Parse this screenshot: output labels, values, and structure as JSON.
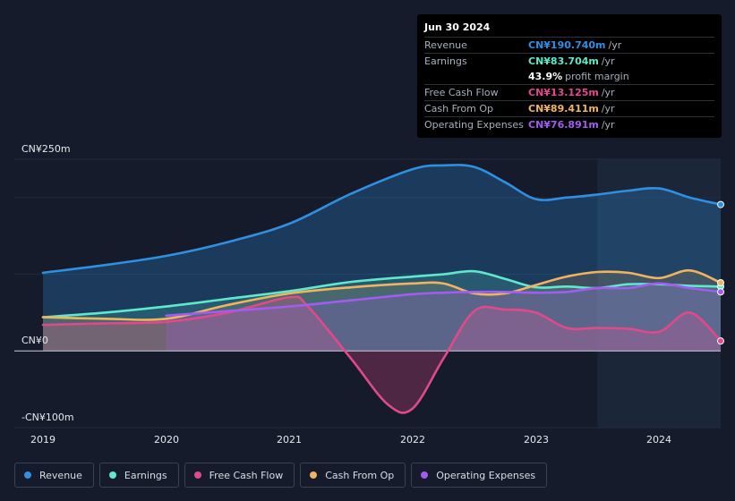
{
  "tooltip": {
    "date": "Jun 30 2024",
    "rows": [
      {
        "label": "Revenue",
        "value": "CN¥190.740m",
        "unit": "/yr",
        "color": "#2f8fe0"
      },
      {
        "label": "Earnings",
        "value": "CN¥83.704m",
        "unit": "/yr",
        "color": "#5ee8cc"
      },
      {
        "label": "",
        "value": "43.9%",
        "unit": "profit margin",
        "color": "#ffffff"
      },
      {
        "label": "Free Cash Flow",
        "value": "CN¥13.125m",
        "unit": "/yr",
        "color": "#e0498a"
      },
      {
        "label": "Cash From Op",
        "value": "CN¥89.411m",
        "unit": "/yr",
        "color": "#f0b461"
      },
      {
        "label": "Operating Expenses",
        "value": "CN¥76.891m",
        "unit": "/yr",
        "color": "#a25cf0"
      }
    ]
  },
  "chart_data": {
    "type": "area",
    "title": "",
    "xlabel": "",
    "ylabel": "",
    "ylim": [
      -100,
      250
    ],
    "y_tick_labels": [
      "CN¥250m",
      "CN¥0",
      "-CN¥100m"
    ],
    "y_tick_values": [
      250,
      0,
      -100
    ],
    "x_tick_labels": [
      "2019",
      "2020",
      "2021",
      "2022",
      "2023",
      "2024"
    ],
    "x_tick_values": [
      2019,
      2020,
      2021,
      2022,
      2023,
      2024
    ],
    "xlim": [
      2019.0,
      2024.5
    ],
    "forecast_shade_start": 2023.5,
    "series": [
      {
        "name": "Revenue",
        "color": "#2f8fe0",
        "x": [
          2019.0,
          2019.5,
          2020.0,
          2020.5,
          2021.0,
          2021.5,
          2022.0,
          2022.25,
          2022.5,
          2022.75,
          2023.0,
          2023.25,
          2023.5,
          2023.75,
          2024.0,
          2024.25,
          2024.5
        ],
        "values": [
          102,
          112,
          124,
          142,
          166,
          205,
          237,
          242,
          240,
          220,
          198,
          200,
          204,
          209,
          212,
          200,
          191
        ]
      },
      {
        "name": "Earnings",
        "color": "#5ee8cc",
        "x": [
          2019.0,
          2019.5,
          2020.0,
          2020.5,
          2021.0,
          2021.5,
          2022.0,
          2022.25,
          2022.5,
          2022.75,
          2023.0,
          2023.25,
          2023.5,
          2023.75,
          2024.0,
          2024.25,
          2024.5
        ],
        "values": [
          44,
          50,
          58,
          68,
          78,
          90,
          97,
          100,
          104,
          94,
          83,
          84,
          82,
          87,
          87,
          85,
          84
        ]
      },
      {
        "name": "Free Cash Flow",
        "color": "#e0498a",
        "x": [
          2019.0,
          2019.5,
          2020.0,
          2020.5,
          2021.0,
          2021.15,
          2021.5,
          2021.8,
          2022.0,
          2022.25,
          2022.5,
          2022.75,
          2023.0,
          2023.25,
          2023.5,
          2023.75,
          2024.0,
          2024.25,
          2024.5
        ],
        "values": [
          34,
          36,
          38,
          50,
          70,
          58,
          -10,
          -70,
          -75,
          -10,
          52,
          54,
          50,
          30,
          30,
          29,
          25,
          50,
          13
        ]
      },
      {
        "name": "Cash From Op",
        "color": "#f0b461",
        "x": [
          2019.0,
          2019.5,
          2020.0,
          2020.5,
          2021.0,
          2021.5,
          2022.0,
          2022.25,
          2022.5,
          2022.75,
          2023.0,
          2023.25,
          2023.5,
          2023.75,
          2024.0,
          2024.25,
          2024.5
        ],
        "values": [
          44,
          42,
          42,
          60,
          75,
          83,
          88,
          88,
          75,
          75,
          86,
          97,
          103,
          102,
          95,
          105,
          89
        ]
      },
      {
        "name": "Operating Expenses",
        "color": "#a25cf0",
        "x": [
          2020.0,
          2020.5,
          2021.0,
          2021.5,
          2022.0,
          2022.25,
          2022.5,
          2022.75,
          2023.0,
          2023.25,
          2023.5,
          2023.75,
          2024.0,
          2024.25,
          2024.5
        ],
        "values": [
          46,
          52,
          58,
          66,
          74,
          76,
          77,
          77,
          76,
          77,
          82,
          82,
          88,
          82,
          77
        ]
      }
    ]
  },
  "legend": [
    {
      "label": "Revenue",
      "color": "#2f8fe0"
    },
    {
      "label": "Earnings",
      "color": "#5ee8cc"
    },
    {
      "label": "Free Cash Flow",
      "color": "#e0498a"
    },
    {
      "label": "Cash From Op",
      "color": "#f0b461"
    },
    {
      "label": "Operating Expenses",
      "color": "#a25cf0"
    }
  ]
}
